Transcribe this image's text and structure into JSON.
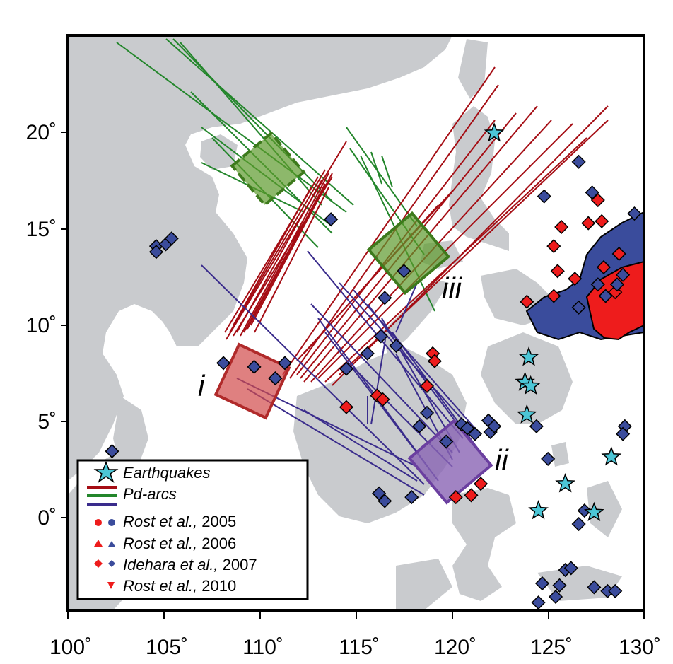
{
  "map": {
    "x_ticks": [
      "100˚",
      "105˚",
      "110˚",
      "115˚",
      "120˚",
      "125˚",
      "130˚"
    ],
    "y_ticks": [
      "20˚",
      "15˚",
      "10˚",
      "5˚",
      "0˚"
    ],
    "lon_range": [
      100,
      130
    ],
    "lat_range": [
      -5,
      25
    ],
    "colors": {
      "land": "#c9cbce",
      "pd_arc_red": "#a50d14",
      "pd_arc_green": "#23862b",
      "pd_arc_blue": "#3a2c8c",
      "red_point": "#ee1c1c",
      "blue_point": "#3b4c9c",
      "star": "#4cc6d6"
    }
  },
  "boxes": [
    {
      "label": "i",
      "color": "#d24a4a"
    },
    {
      "label": "ii",
      "color": "#8a64b4"
    },
    {
      "label": "iii",
      "color": "#5c9a2c"
    }
  ],
  "legend": {
    "earthquakes": "Earthquakes",
    "pd_arcs": "Pd-arcs",
    "rows": [
      {
        "author": "Rost et al.,",
        "year": "2005"
      },
      {
        "author": "Rost et al.,",
        "year": "2006"
      },
      {
        "author": "Idehara et al.,",
        "year": "2007"
      },
      {
        "author": "Rost et al.,",
        "year": "2010"
      }
    ]
  },
  "earthquakes": [
    {
      "lon": 122.2,
      "lat": 19.9
    },
    {
      "lon": 124.0,
      "lat": 8.2
    },
    {
      "lon": 123.8,
      "lat": 6.9
    },
    {
      "lon": 124.1,
      "lat": 6.7
    },
    {
      "lon": 123.9,
      "lat": 5.2
    },
    {
      "lon": 128.3,
      "lat": 3.0
    },
    {
      "lon": 125.9,
      "lat": 1.6
    },
    {
      "lon": 124.5,
      "lat": 0.2
    },
    {
      "lon": 127.4,
      "lat": 0.1
    }
  ],
  "red_diamonds": [
    {
      "lon": 119.0,
      "lat": 8.4
    },
    {
      "lon": 119.1,
      "lat": 8.0
    },
    {
      "lon": 118.7,
      "lat": 6.7
    },
    {
      "lon": 116.1,
      "lat": 6.2
    },
    {
      "lon": 116.4,
      "lat": 6.0
    },
    {
      "lon": 114.5,
      "lat": 5.6
    },
    {
      "lon": 121.5,
      "lat": 1.6
    },
    {
      "lon": 121.0,
      "lat": 1.0
    },
    {
      "lon": 120.2,
      "lat": 0.9
    },
    {
      "lon": 123.9,
      "lat": 11.1
    },
    {
      "lon": 125.3,
      "lat": 11.4
    },
    {
      "lon": 125.5,
      "lat": 12.7
    },
    {
      "lon": 125.3,
      "lat": 14.0
    },
    {
      "lon": 125.7,
      "lat": 15.0
    },
    {
      "lon": 126.4,
      "lat": 12.3
    },
    {
      "lon": 127.1,
      "lat": 15.2
    },
    {
      "lon": 127.6,
      "lat": 16.4
    },
    {
      "lon": 127.8,
      "lat": 15.3
    },
    {
      "lon": 127.9,
      "lat": 12.9
    },
    {
      "lon": 128.7,
      "lat": 13.6
    },
    {
      "lon": 128.5,
      "lat": 11.6
    }
  ],
  "blue_diamonds": [
    {
      "lon": 104.6,
      "lat": 14.0
    },
    {
      "lon": 104.6,
      "lat": 13.7
    },
    {
      "lon": 105.1,
      "lat": 14.1
    },
    {
      "lon": 105.4,
      "lat": 14.4
    },
    {
      "lon": 102.3,
      "lat": 3.3
    },
    {
      "lon": 108.1,
      "lat": 7.9
    },
    {
      "lon": 109.7,
      "lat": 7.7
    },
    {
      "lon": 110.8,
      "lat": 7.1
    },
    {
      "lon": 111.3,
      "lat": 7.9
    },
    {
      "lon": 113.7,
      "lat": 15.4
    },
    {
      "lon": 114.5,
      "lat": 7.6
    },
    {
      "lon": 115.6,
      "lat": 8.4
    },
    {
      "lon": 116.3,
      "lat": 9.3
    },
    {
      "lon": 117.1,
      "lat": 8.8
    },
    {
      "lon": 116.5,
      "lat": 11.3
    },
    {
      "lon": 117.5,
      "lat": 12.7
    },
    {
      "lon": 118.7,
      "lat": 5.3
    },
    {
      "lon": 118.3,
      "lat": 4.6
    },
    {
      "lon": 119.7,
      "lat": 3.8
    },
    {
      "lon": 120.5,
      "lat": 4.7
    },
    {
      "lon": 120.8,
      "lat": 4.5
    },
    {
      "lon": 121.2,
      "lat": 4.2
    },
    {
      "lon": 121.9,
      "lat": 4.9
    },
    {
      "lon": 122.0,
      "lat": 4.3
    },
    {
      "lon": 122.2,
      "lat": 4.6
    },
    {
      "lon": 116.2,
      "lat": 1.1
    },
    {
      "lon": 116.5,
      "lat": 0.7
    },
    {
      "lon": 117.9,
      "lat": 0.9
    },
    {
      "lon": 124.4,
      "lat": 4.6
    },
    {
      "lon": 125.0,
      "lat": 2.9
    },
    {
      "lon": 126.9,
      "lat": 0.2
    },
    {
      "lon": 126.6,
      "lat": -0.5
    },
    {
      "lon": 124.8,
      "lat": 16.6
    },
    {
      "lon": 126.6,
      "lat": 18.4
    },
    {
      "lon": 127.3,
      "lat": 16.8
    },
    {
      "lon": 126.6,
      "lat": 10.8
    },
    {
      "lon": 127.6,
      "lat": 12.0
    },
    {
      "lon": 128.0,
      "lat": 11.4
    },
    {
      "lon": 128.6,
      "lat": 12.0
    },
    {
      "lon": 128.9,
      "lat": 12.5
    },
    {
      "lon": 129.5,
      "lat": 15.7
    },
    {
      "lon": 129.0,
      "lat": 4.6
    },
    {
      "lon": 128.9,
      "lat": 4.2
    },
    {
      "lon": 124.7,
      "lat": -3.6
    },
    {
      "lon": 125.9,
      "lat": -2.9
    },
    {
      "lon": 126.2,
      "lat": -2.8
    },
    {
      "lon": 125.6,
      "lat": -3.7
    },
    {
      "lon": 125.4,
      "lat": -4.3
    },
    {
      "lon": 127.4,
      "lat": -3.8
    },
    {
      "lon": 128.1,
      "lat": -4.0
    },
    {
      "lon": 128.5,
      "lat": -4.0
    },
    {
      "lon": 124.5,
      "lat": -4.6
    }
  ]
}
